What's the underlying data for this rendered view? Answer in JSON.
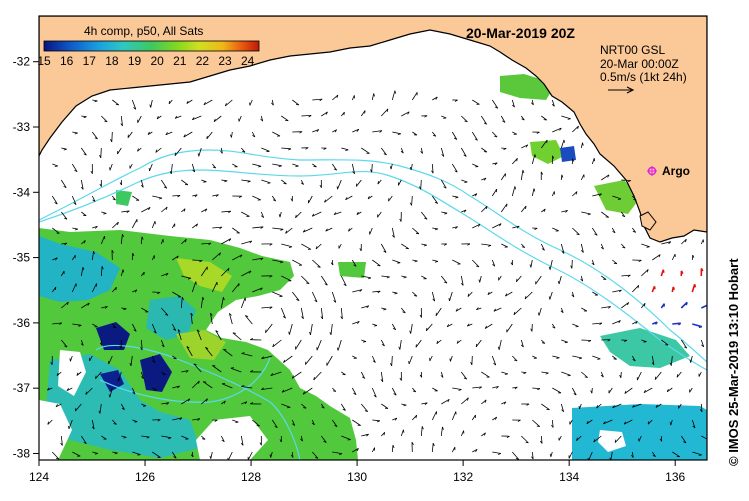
{
  "colorbar": {
    "title": "4h comp, p50, All Sats",
    "ticks": [
      "15",
      "16",
      "17",
      "18",
      "19",
      "20",
      "21",
      "22",
      "23",
      "24"
    ],
    "range": [
      15,
      24.5
    ]
  },
  "date_label": "20-Mar-2019 20Z",
  "current_legend": {
    "lines": [
      "NRT00 GSL",
      "20-Mar 00:00Z",
      "0.5m/s (1kt 24h)"
    ]
  },
  "argo_label": "Argo",
  "side_credit": "© IMOS 25-Mar-2019 13:10 Hobart",
  "axes": {
    "x_ticks": [
      "124",
      "126",
      "128",
      "130",
      "132",
      "134",
      "136"
    ],
    "y_ticks": [
      "-32",
      "-33",
      "-34",
      "-35",
      "-36",
      "-37",
      "-38"
    ],
    "xlim": [
      124,
      136.6
    ],
    "ylim": [
      -38.1,
      -31.3
    ]
  },
  "colors": {
    "land": "#fbc898",
    "coastline": "#000000",
    "depth_contour": "#5cd8ec",
    "argo_marker": "#e020e0",
    "vector": "#000000",
    "vector_alt": "#e01010",
    "vector_alt2": "#2030c0"
  },
  "chart_data": {
    "type": "heatmap",
    "variable": "sea surface temperature",
    "colorscale": [
      "#0a1480",
      "#0e58c8",
      "#1a9ee0",
      "#2fc8c0",
      "#3ec860",
      "#84d820",
      "#d0e020",
      "#f0b818",
      "#e85a10",
      "#c01808"
    ],
    "xlim": [
      124,
      136.6
    ],
    "ylim": [
      -38.1,
      -31.3
    ],
    "argo": {
      "lon": 135.4,
      "lat": -33.6
    }
  }
}
